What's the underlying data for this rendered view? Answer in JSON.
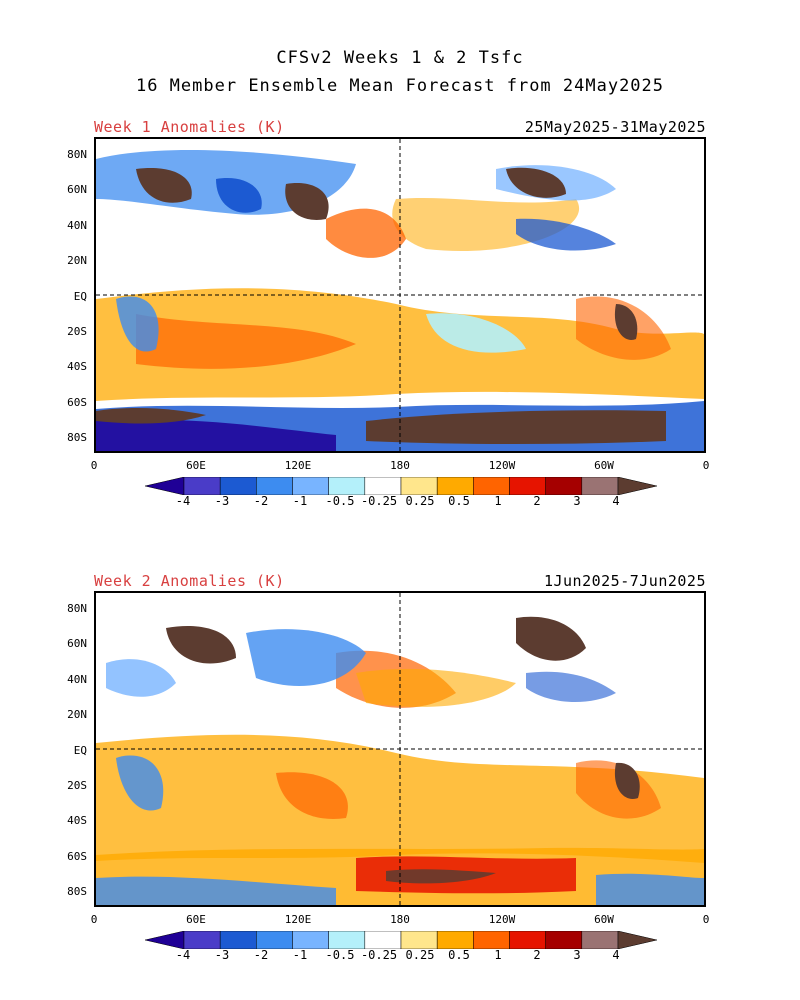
{
  "figure": {
    "title_line1": "CFSv2 Weeks 1 & 2 Tsfc",
    "title_line2": "16 Member Ensemble Mean Forecast from 24May2025"
  },
  "panels": [
    {
      "label": "Week 1 Anomalies (K)",
      "date_range": "25May2025-31May2025"
    },
    {
      "label": "Week 2 Anomalies (K)",
      "date_range": "1Jun2025-7Jun2025"
    }
  ],
  "axes": {
    "lat_labels": [
      "80N",
      "60N",
      "40N",
      "20N",
      "EQ",
      "20S",
      "40S",
      "60S",
      "80S"
    ],
    "lon_labels": [
      "0",
      "60E",
      "120E",
      "180",
      "120W",
      "60W",
      "0"
    ]
  },
  "colorbar": {
    "tick_labels": [
      "-4",
      "-3",
      "-2",
      "-1",
      "-0.5",
      "-0.25",
      "0.25",
      "0.5",
      "1",
      "2",
      "3",
      "4"
    ],
    "colors": [
      "#1f0096",
      "#4a3cc8",
      "#1c5ad2",
      "#3d8cf0",
      "#78b4ff",
      "#b4f0fa",
      "#ffffff",
      "#ffe68c",
      "#ffaa00",
      "#ff6400",
      "#e61400",
      "#a50000",
      "#9a7373",
      "#5c3c30"
    ]
  },
  "chart_data": {
    "type": "heatmap",
    "variable": "Tsfc",
    "units": "K",
    "levels": [
      -4,
      -3,
      -2,
      -1,
      -0.5,
      -0.25,
      0.25,
      0.5,
      1,
      2,
      3,
      4
    ],
    "lat_range": [
      -90,
      90
    ],
    "lon_range": [
      0,
      360
    ]
  }
}
